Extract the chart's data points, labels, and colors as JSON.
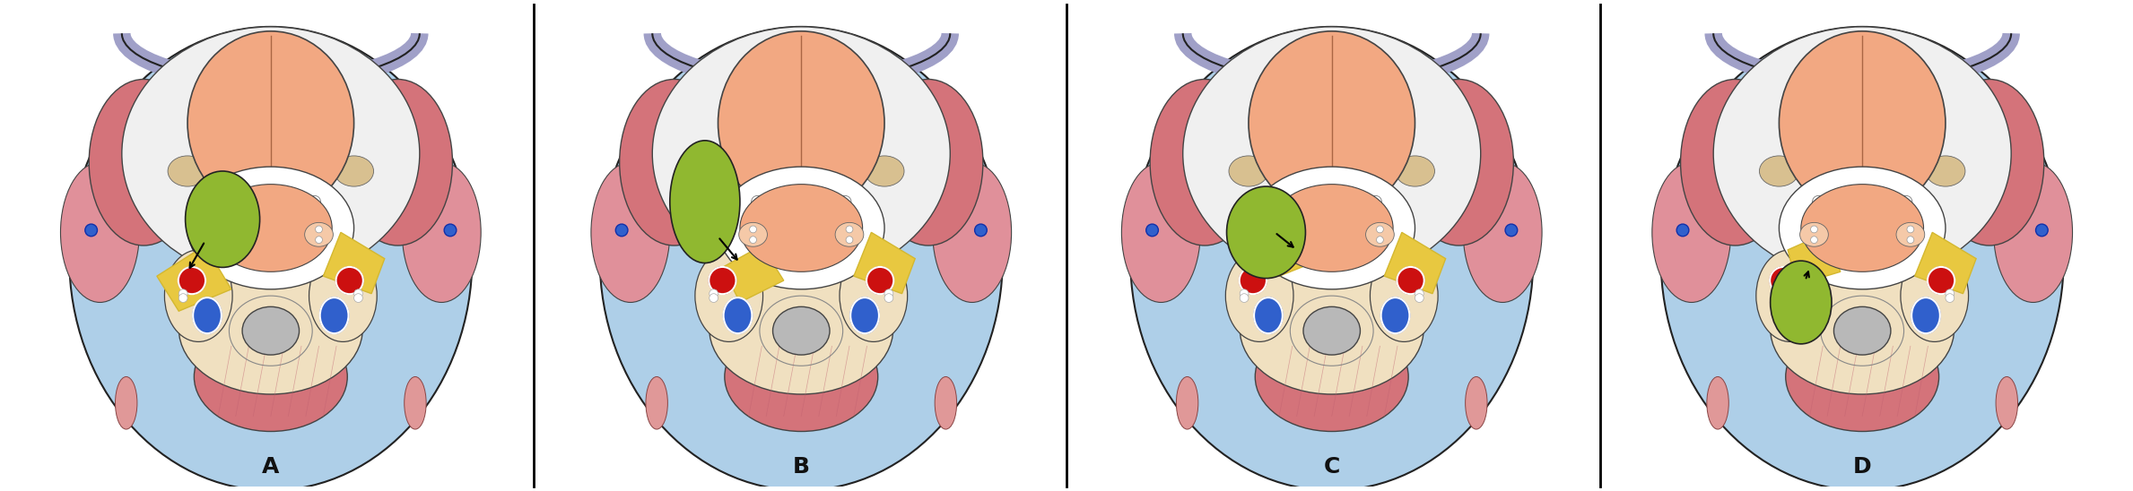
{
  "panels": [
    "A",
    "B",
    "C",
    "D"
  ],
  "outer_bg": "#ffffff",
  "divider_color": "#000000",
  "label_fontsize": 18,
  "label_color": "#111111",
  "colors": {
    "light_blue_bg": "#aecfe8",
    "skin_salmon": "#f2a882",
    "skin_pale": "#f5c9a8",
    "muscle_pink": "#d4737a",
    "muscle_pink_lt": "#e09090",
    "white_area": "#ffffff",
    "off_white": "#f5f5f5",
    "yellow_fat": "#e8c840",
    "yellow_fat2": "#d4b830",
    "green_tumor": "#90b830",
    "green_tumor2": "#a0c020",
    "purple_skull": "#9090b8",
    "dark_outline": "#222222",
    "mid_outline": "#444444",
    "lt_outline": "#666666",
    "red_vessel": "#cc1010",
    "blue_vessel_lt": "#3060cc",
    "blue_vessel_dk": "#1030aa",
    "gray_cord": "#b8b8b8",
    "beige_space": "#f0e0c0",
    "peach_bg": "#f8d5b0",
    "tan_pad": "#d8c090",
    "pink_strip": "#e8a0a0",
    "lavender": "#a0a0c8"
  }
}
